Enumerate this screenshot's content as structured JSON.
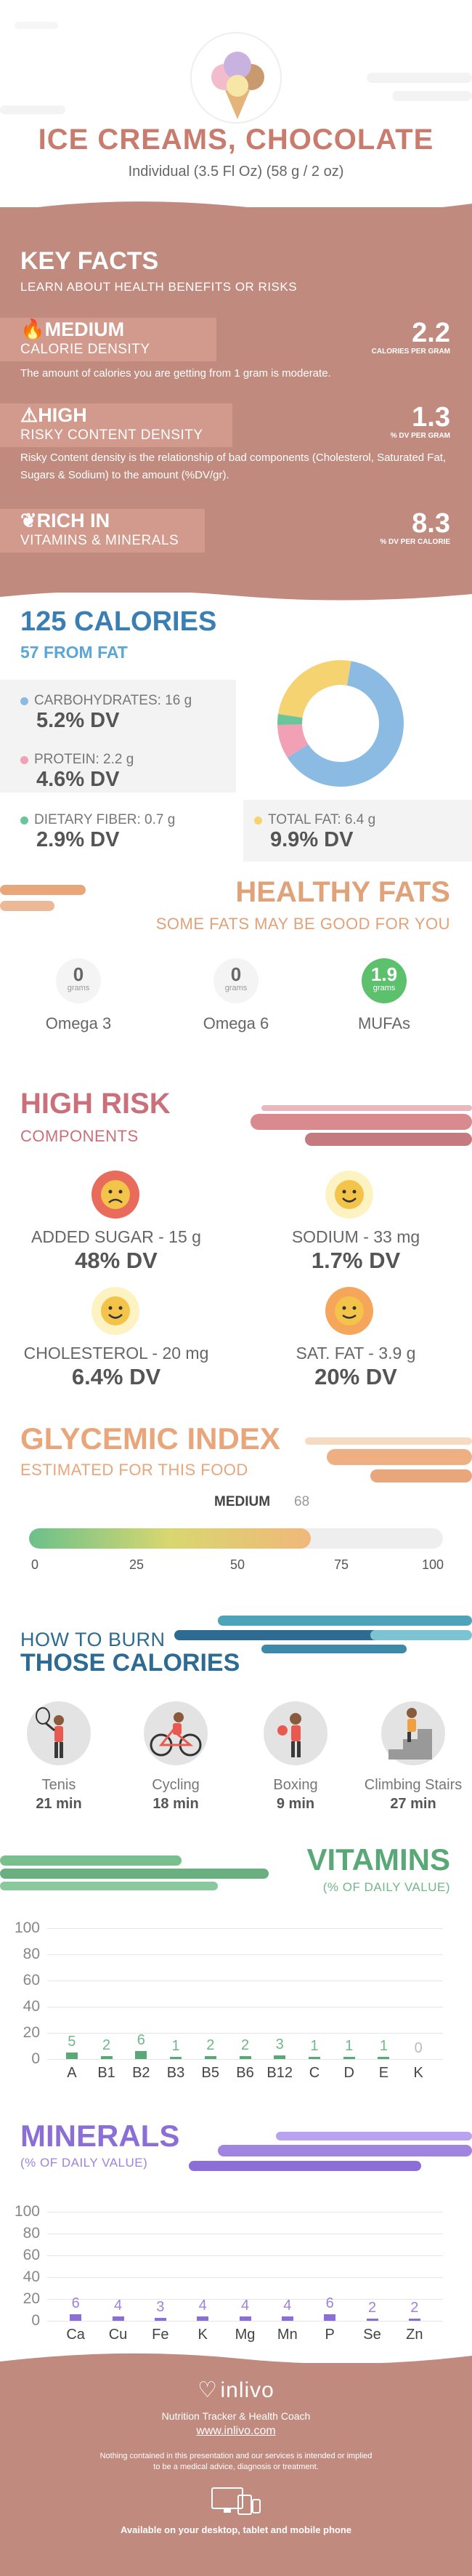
{
  "header": {
    "title": "ICE CREAMS, CHOCOLATE",
    "subtitle": "Individual (3.5 Fl Oz) (58 g / 2 oz)"
  },
  "key_facts": {
    "title": "KEY FACTS",
    "subtitle": "LEARN ABOUT HEALTH BENEFITS OR RISKS",
    "facts": [
      {
        "level": "MEDIUM",
        "name": "CALORIE DENSITY",
        "value": "2.2",
        "unit": "CALORIES PER GRAM",
        "description": "The amount of calories you are getting from 1 gram is moderate.",
        "icon": "flame-icon"
      },
      {
        "level": "HIGH",
        "name": "RISKY CONTENT DENSITY",
        "value": "1.3",
        "unit": "% DV PER GRAM",
        "description": "Risky Content density is the relationship of bad components (Cholesterol, Saturated Fat, Sugars & Sodium) to the amount (%DV/gr).",
        "icon": "warning-icon"
      },
      {
        "level": "RICH  IN",
        "name": "VITAMINS & MINERALS",
        "value": "8.3",
        "unit": "% DV PER CALORIE",
        "description": "",
        "icon": "leaf-icon"
      }
    ]
  },
  "calories": {
    "title": "125 CALORIES",
    "from_fat": "57 FROM FAT",
    "nutrients": [
      {
        "label": "CARBOHYDRATES: 16 g",
        "dv": "5.2% DV",
        "color": "#8bbbe3"
      },
      {
        "label": "PROTEIN: 2.2 g",
        "dv": "4.6% DV",
        "color": "#f2a0b6"
      },
      {
        "label": "DIETARY FIBER: 0.7 g",
        "dv": "2.9% DV",
        "color": "#6cc49a"
      },
      {
        "label": "TOTAL FAT: 6.4 g",
        "dv": "9.9% DV",
        "color": "#f5d371"
      }
    ],
    "donut": [
      {
        "name": "carbohydrates",
        "value": 16,
        "color": "#8bbbe3"
      },
      {
        "name": "protein",
        "value": 2.2,
        "color": "#f2a0b6"
      },
      {
        "name": "fiber",
        "value": 0.7,
        "color": "#6cc49a"
      },
      {
        "name": "fat",
        "value": 6.4,
        "color": "#f5d371"
      }
    ]
  },
  "healthy_fats": {
    "title": "HEALTHY FATS",
    "subtitle": "SOME FATS MAY BE GOOD FOR YOU",
    "unit": "grams",
    "items": [
      {
        "name": "Omega 3",
        "value": "0"
      },
      {
        "name": "Omega 6",
        "value": "0"
      },
      {
        "name": "MUFAs",
        "value": "1.9"
      }
    ]
  },
  "high_risk": {
    "title": "HIGH RISK",
    "subtitle": "COMPONENTS",
    "items": [
      {
        "label": "ADDED SUGAR - 15 g",
        "dv": "48% DV",
        "face": "sad-face-icon",
        "color": "#e86b5b"
      },
      {
        "label": "SODIUM - 33 mg",
        "dv": "1.7% DV",
        "face": "happy-face-icon",
        "color": "#f7e46a"
      },
      {
        "label": "CHOLESTEROL - 20 mg",
        "dv": "6.4% DV",
        "face": "happy-face-icon",
        "color": "#f7e46a"
      },
      {
        "label": "SAT. FAT - 3.9 g",
        "dv": "20% DV",
        "face": "neutral-face-icon",
        "color": "#f5a65b"
      }
    ]
  },
  "glycemic": {
    "title": "GLYCEMIC INDEX",
    "subtitle": "ESTIMATED FOR THIS FOOD",
    "level": "MEDIUM",
    "value": "68",
    "ticks": [
      "0",
      "25",
      "50",
      "75",
      "100"
    ]
  },
  "burn": {
    "title_line1": "HOW TO BURN",
    "title_line2": "THOSE CALORIES",
    "activities": [
      {
        "name": "Tenis",
        "minutes": "21 min",
        "icon": "tennis-icon"
      },
      {
        "name": "Cycling",
        "minutes": "18 min",
        "icon": "cycling-icon"
      },
      {
        "name": "Boxing",
        "minutes": "9 min",
        "icon": "boxing-icon"
      },
      {
        "name": "Climbing Stairs",
        "minutes": "27 min",
        "icon": "stairs-icon"
      }
    ]
  },
  "chart_data": [
    {
      "type": "bar",
      "title": "VITAMINS",
      "subtitle": "(% OF DAILY VALUE)",
      "categories": [
        "A",
        "B1",
        "B2",
        "B3",
        "B5",
        "B6",
        "B12",
        "C",
        "D",
        "E",
        "K"
      ],
      "values": [
        5,
        2,
        6,
        1,
        2,
        2,
        3,
        1,
        1,
        1,
        0
      ],
      "ylim": [
        0,
        100
      ],
      "yticks": [
        "100",
        "80",
        "60",
        "40",
        "20",
        "0"
      ],
      "color": "#5aa877",
      "label_color": "#6fb88a"
    },
    {
      "type": "bar",
      "title": "MINERALS",
      "subtitle": "(% OF DAILY VALUE)",
      "categories": [
        "Ca",
        "Cu",
        "Fe",
        "K",
        "Mg",
        "Mn",
        "P",
        "Se",
        "Zn"
      ],
      "values": [
        6,
        4,
        3,
        4,
        4,
        4,
        6,
        2,
        2
      ],
      "ylim": [
        0,
        100
      ],
      "yticks": [
        "100",
        "80",
        "60",
        "40",
        "20",
        "0"
      ],
      "color": "#8b6fd6",
      "label_color": "#9c84de"
    }
  ],
  "footer": {
    "brand": "inlivo",
    "tagline": "Nutrition Tracker & Health Coach",
    "url": "www.inlivo.com",
    "disclaimer_line1": "Nothing contained in this presentation and our services is intended or implied",
    "disclaimer_line2": "to be a medical advice, diagnosis or treatment.",
    "devices": "Available on your desktop, tablet and mobile phone"
  }
}
